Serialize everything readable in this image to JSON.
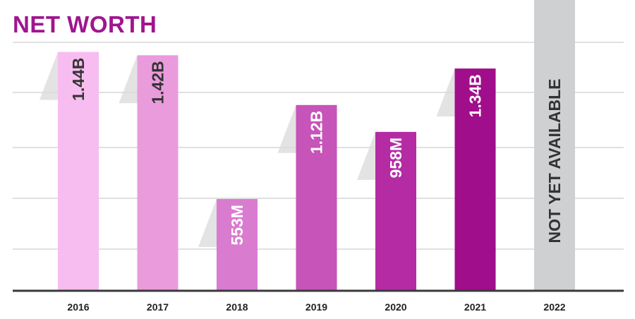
{
  "chart_data": {
    "type": "bar",
    "title": "NET WORTH",
    "xlabel": "",
    "ylabel": "",
    "grid": true,
    "categories": [
      "2016",
      "2017",
      "2018",
      "2019",
      "2020",
      "2021",
      "2022"
    ],
    "values_billion": [
      1.44,
      1.42,
      0.553,
      1.12,
      0.958,
      1.34,
      null
    ],
    "labels": [
      "1.44B",
      "1.42B",
      "553M",
      "1.12B",
      "958M",
      "1.34B",
      "NOT YET AVAILABLE"
    ],
    "ylim": [
      0,
      1.6
    ],
    "colors": [
      "#f7bdf1",
      "#e99bdc",
      "#d97bcf",
      "#c654b9",
      "#b42ba4",
      "#a00e8b",
      "#cfd0d2"
    ]
  }
}
